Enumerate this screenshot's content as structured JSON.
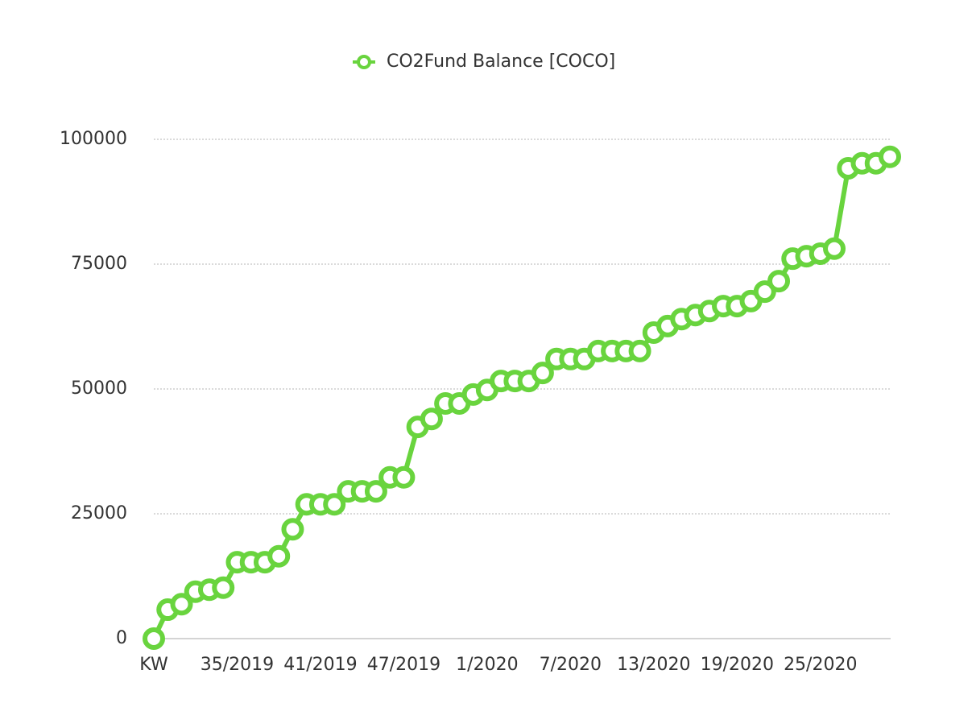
{
  "chart_data": {
    "type": "line",
    "categories": [
      "KW",
      null,
      null,
      null,
      null,
      null,
      "35/2019",
      null,
      null,
      null,
      null,
      null,
      "41/2019",
      null,
      null,
      null,
      null,
      null,
      "47/2019",
      null,
      null,
      null,
      null,
      null,
      "1/2020",
      null,
      null,
      null,
      null,
      null,
      "7/2020",
      null,
      null,
      null,
      null,
      null,
      "13/2020",
      null,
      null,
      null,
      null,
      null,
      "19/2020",
      null,
      null,
      null,
      null,
      null,
      "25/2020",
      null,
      null,
      null,
      null,
      null
    ],
    "series": [
      {
        "name": "CO2Fund Balance [COCO]",
        "color": "#69d43e",
        "values": [
          0,
          5800,
          6900,
          9400,
          9800,
          10200,
          15300,
          15300,
          15300,
          16500,
          21900,
          26900,
          26900,
          26900,
          29500,
          29500,
          29500,
          32300,
          32300,
          42400,
          44000,
          47100,
          47100,
          48900,
          49800,
          51600,
          51600,
          51600,
          53200,
          56000,
          56000,
          56000,
          57600,
          57600,
          57600,
          57600,
          61300,
          62600,
          64000,
          64800,
          65600,
          66600,
          66600,
          67600,
          69500,
          71600,
          76100,
          76600,
          77100,
          78100,
          94200,
          95200,
          95200,
          96500
        ]
      }
    ],
    "ylim": [
      0,
      100000
    ],
    "yticks": [
      0,
      25000,
      50000,
      75000,
      100000
    ],
    "grid": true,
    "legend": "top"
  }
}
